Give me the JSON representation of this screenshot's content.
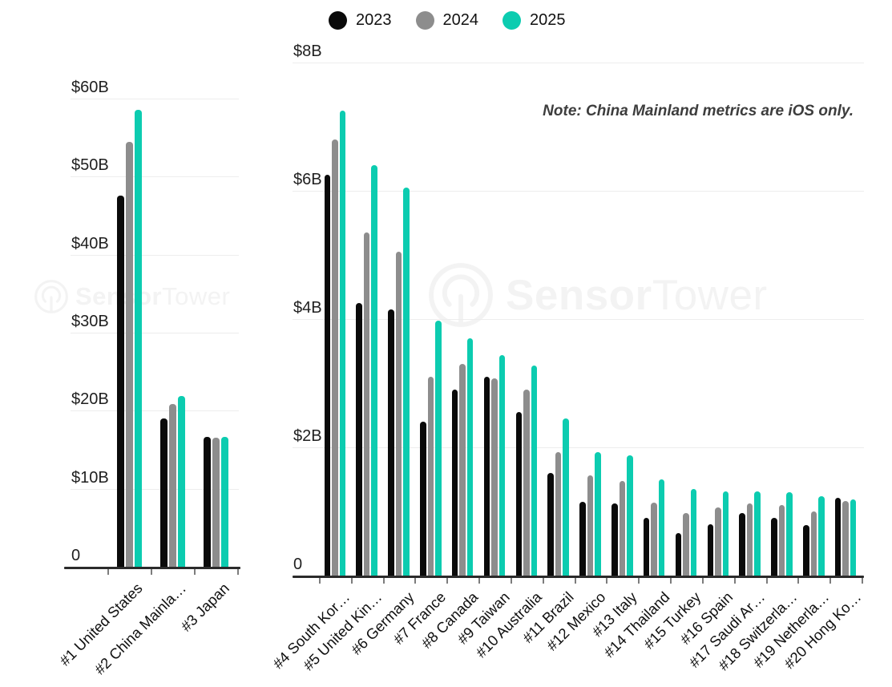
{
  "legend": {
    "items": [
      {
        "label": "2023",
        "color": "#0a0a0a"
      },
      {
        "label": "2024",
        "color": "#8d8d8d"
      },
      {
        "label": "2025",
        "color": "#0cccb0"
      }
    ]
  },
  "note": "Note: China Mainland metrics are iOS only.",
  "watermark": {
    "bold": "Sensor",
    "light": "Tower"
  },
  "colors": {
    "bar_2023": "#0a0a0a",
    "bar_2024": "#8d8d8d",
    "bar_2025": "#0cccb0",
    "gridline": "#ededed",
    "axis": "#2b2b2b"
  },
  "chart_data": [
    {
      "type": "bar",
      "title": "",
      "categories": [
        "#1 United States",
        "#2 China Mainla…",
        "#3 Japan"
      ],
      "series": [
        {
          "name": "2023",
          "color": "#0a0a0a",
          "values": [
            47.6,
            19.0,
            16.6
          ]
        },
        {
          "name": "2024",
          "color": "#8d8d8d",
          "values": [
            54.5,
            20.9,
            16.5
          ]
        },
        {
          "name": "2025",
          "color": "#0cccb0",
          "values": [
            58.6,
            21.9,
            16.6
          ]
        }
      ],
      "xlabel": "",
      "ylabel": "",
      "ylim": [
        0,
        60
      ],
      "ytick_values": [
        0,
        10,
        20,
        30,
        40,
        50,
        60
      ],
      "ytick_labels": [
        "0",
        "$10B",
        "$20B",
        "$30B",
        "$40B",
        "$50B",
        "$60B"
      ],
      "grid": true,
      "legend_position": "top-center"
    },
    {
      "type": "bar",
      "title": "",
      "categories": [
        "#4 South Kor…",
        "#5 United Kin…",
        "#6 Germany",
        "#7 France",
        "#8 Canada",
        "#9 Taiwan",
        "#10 Australia",
        "#11 Brazil",
        "#12 Mexico",
        "#13 Italy",
        "#14 Thailand",
        "#15 Turkey",
        "#16 Spain",
        "#17 Saudi Ar…",
        "#18 Switzerla…",
        "#19 Netherla…",
        "#20 Hong Ko…"
      ],
      "series": [
        {
          "name": "2023",
          "color": "#0a0a0a",
          "values": [
            6.25,
            4.25,
            4.15,
            2.4,
            2.9,
            3.1,
            2.55,
            1.6,
            1.15,
            1.13,
            0.9,
            0.66,
            0.8,
            0.97,
            0.9,
            0.79,
            1.21
          ]
        },
        {
          "name": "2024",
          "color": "#8d8d8d",
          "values": [
            6.8,
            5.35,
            5.05,
            3.1,
            3.3,
            3.07,
            2.9,
            1.93,
            1.56,
            1.48,
            1.14,
            0.97,
            1.06,
            1.12,
            1.1,
            1.0,
            1.16
          ]
        },
        {
          "name": "2025",
          "color": "#0cccb0",
          "values": [
            7.25,
            6.4,
            6.05,
            3.98,
            3.7,
            3.44,
            3.27,
            2.45,
            1.92,
            1.88,
            1.5,
            1.35,
            1.31,
            1.31,
            1.3,
            1.24,
            1.19
          ]
        }
      ],
      "xlabel": "",
      "ylabel": "",
      "ylim": [
        0,
        8
      ],
      "ytick_values": [
        0,
        2,
        4,
        6,
        8
      ],
      "ytick_labels": [
        "0",
        "$2B",
        "$4B",
        "$6B",
        "$8B"
      ],
      "grid": true,
      "legend_position": "top-center"
    }
  ]
}
